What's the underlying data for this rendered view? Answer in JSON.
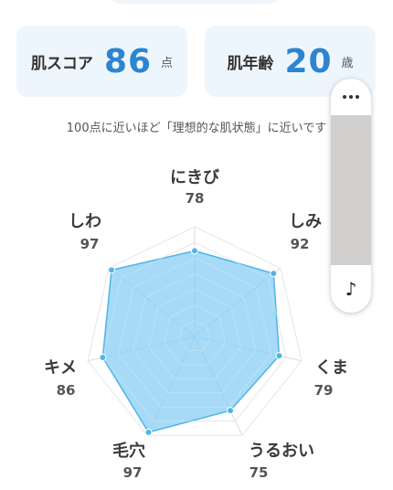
{
  "score_cards": {
    "skin_score": {
      "label": "肌スコア",
      "value": "86",
      "unit": "点"
    },
    "skin_age": {
      "label": "肌年齢",
      "value": "20",
      "unit": "歳"
    }
  },
  "note": "100点に近いほど「理想的な肌状態」に近いです",
  "overlay": {
    "menu_icon": "more-dots-icon",
    "bottom_icon": "music-note-icon",
    "bottom_glyph": "♪"
  },
  "colors": {
    "accent": "#2d85d0",
    "card_bg": "#eef6fd",
    "radar_fill": "#88cdf3",
    "radar_stroke": "#4fb4ea"
  },
  "chart_data": {
    "type": "radar",
    "categories": [
      "にきび",
      "しみ",
      "くま",
      "うるおい",
      "毛穴",
      "キメ",
      "しわ"
    ],
    "values": [
      78,
      92,
      79,
      75,
      97,
      86,
      97
    ],
    "range": [
      0,
      100
    ],
    "rings": 7
  }
}
